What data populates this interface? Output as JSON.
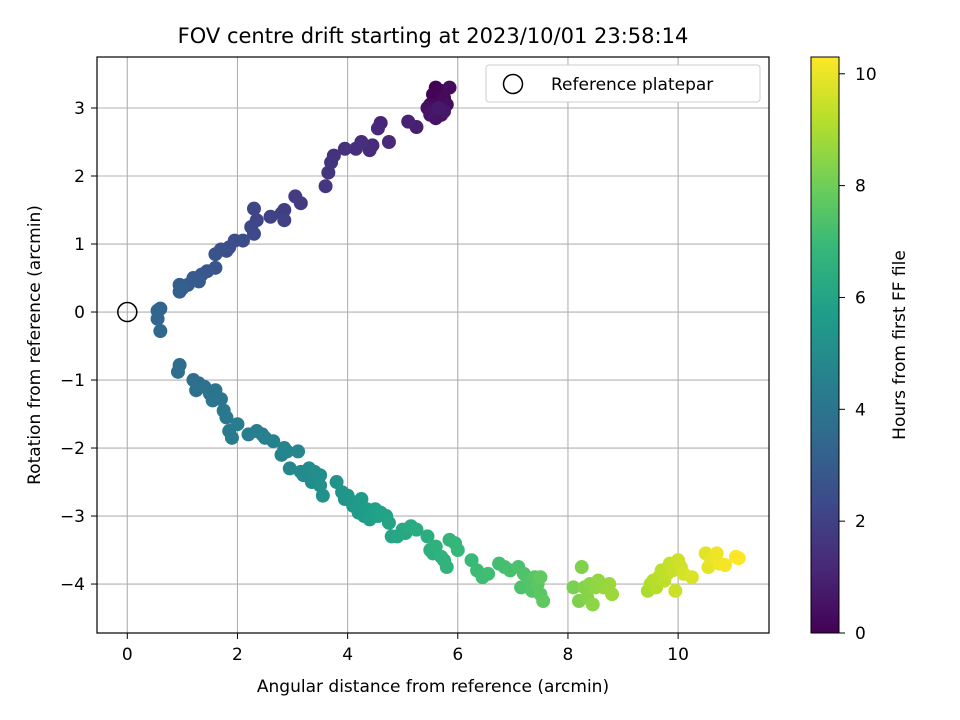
{
  "chart_data": {
    "type": "scatter",
    "title": "FOV centre drift starting at 2023/10/01 23:58:14",
    "xlabel": "Angular distance from reference (arcmin)",
    "ylabel": "Rotation from reference (arcmin)",
    "xlim": [
      -0.55,
      11.65
    ],
    "ylim": [
      -4.72,
      3.75
    ],
    "xticks": [
      0,
      2,
      4,
      6,
      8,
      10
    ],
    "yticks": [
      -4,
      -3,
      -2,
      -1,
      0,
      1,
      2,
      3
    ],
    "grid": true,
    "legend": {
      "placement": "top-right",
      "entries": [
        "Reference platepar"
      ]
    },
    "reference_point": {
      "x": 0,
      "y": 0,
      "label": "Reference platepar",
      "marker": "open-circle"
    },
    "colorbar": {
      "label": "Hours from first FF file",
      "min": 0,
      "max": 10.3,
      "ticks": [
        0,
        2,
        4,
        6,
        8,
        10
      ],
      "colormap": "viridis"
    },
    "colormap_stops": [
      "#440154",
      "#482878",
      "#3e4989",
      "#31688e",
      "#26828e",
      "#1f9e89",
      "#35b779",
      "#6ece58",
      "#b5de2b",
      "#fde725"
    ],
    "series": [
      {
        "points": [
          [
            5.6,
            3.3,
            0.0
          ],
          [
            5.55,
            3.2,
            0.05
          ],
          [
            5.7,
            3.25,
            0.1
          ],
          [
            5.65,
            3.1,
            0.15
          ],
          [
            5.5,
            3.05,
            0.2
          ],
          [
            5.75,
            3.15,
            0.25
          ],
          [
            5.85,
            3.3,
            0.3
          ],
          [
            5.8,
            3.05,
            0.35
          ],
          [
            5.55,
            2.95,
            0.4
          ],
          [
            5.45,
            3.0,
            0.45
          ],
          [
            5.7,
            2.9,
            0.5
          ],
          [
            5.6,
            2.85,
            0.55
          ],
          [
            5.5,
            2.9,
            0.6
          ],
          [
            5.75,
            2.95,
            0.65
          ],
          [
            5.65,
            3.0,
            0.7
          ],
          [
            5.25,
            2.72,
            0.9
          ],
          [
            5.1,
            2.8,
            1.0
          ],
          [
            4.6,
            2.78,
            1.1
          ],
          [
            4.55,
            2.7,
            1.15
          ],
          [
            4.75,
            2.5,
            1.2
          ],
          [
            4.45,
            2.45,
            1.25
          ],
          [
            4.4,
            2.38,
            1.3
          ],
          [
            4.25,
            2.5,
            1.35
          ],
          [
            4.15,
            2.4,
            1.4
          ],
          [
            3.95,
            2.4,
            1.45
          ],
          [
            3.75,
            2.3,
            1.5
          ],
          [
            3.7,
            2.2,
            1.55
          ],
          [
            3.65,
            2.05,
            1.6
          ],
          [
            3.6,
            1.85,
            1.65
          ],
          [
            3.15,
            1.6,
            1.8
          ],
          [
            3.05,
            1.7,
            1.85
          ],
          [
            2.85,
            1.5,
            1.9
          ],
          [
            2.8,
            1.45,
            1.95
          ],
          [
            2.85,
            1.35,
            2.0
          ],
          [
            2.6,
            1.4,
            2.05
          ],
          [
            2.35,
            1.35,
            2.15
          ],
          [
            2.3,
            1.52,
            2.2
          ],
          [
            2.25,
            1.25,
            2.25
          ],
          [
            2.3,
            1.15,
            2.3
          ],
          [
            2.1,
            1.05,
            2.4
          ],
          [
            1.95,
            1.05,
            2.45
          ],
          [
            1.85,
            0.95,
            2.5
          ],
          [
            1.8,
            0.9,
            2.55
          ],
          [
            1.7,
            0.92,
            2.6
          ],
          [
            1.6,
            0.85,
            2.65
          ],
          [
            1.6,
            0.65,
            2.75
          ],
          [
            1.45,
            0.6,
            2.8
          ],
          [
            1.35,
            0.55,
            2.85
          ],
          [
            1.3,
            0.45,
            2.9
          ],
          [
            1.2,
            0.5,
            2.95
          ],
          [
            1.1,
            0.4,
            3.0
          ],
          [
            0.95,
            0.4,
            3.05
          ],
          [
            1.0,
            0.35,
            3.1
          ],
          [
            0.95,
            0.3,
            3.15
          ],
          [
            0.6,
            0.05,
            3.3
          ],
          [
            0.55,
            0.02,
            3.35
          ],
          [
            0.55,
            -0.1,
            3.4
          ],
          [
            0.6,
            -0.28,
            3.45
          ],
          [
            0.95,
            -0.78,
            3.6
          ],
          [
            0.92,
            -0.88,
            3.65
          ],
          [
            1.2,
            -1.0,
            3.7
          ],
          [
            1.3,
            -1.05,
            3.75
          ],
          [
            1.25,
            -1.15,
            3.8
          ],
          [
            1.4,
            -1.1,
            3.85
          ],
          [
            1.5,
            -1.2,
            3.9
          ],
          [
            1.6,
            -1.15,
            3.95
          ],
          [
            1.55,
            -1.3,
            4.0
          ],
          [
            1.7,
            -1.28,
            4.05
          ],
          [
            1.75,
            -1.45,
            4.1
          ],
          [
            1.8,
            -1.55,
            4.15
          ],
          [
            1.85,
            -1.75,
            4.2
          ],
          [
            1.9,
            -1.85,
            4.25
          ],
          [
            2.0,
            -1.65,
            4.3
          ],
          [
            2.2,
            -1.8,
            4.35
          ],
          [
            2.35,
            -1.75,
            4.4
          ],
          [
            2.45,
            -1.8,
            4.45
          ],
          [
            2.5,
            -1.85,
            4.5
          ],
          [
            2.65,
            -1.9,
            4.55
          ],
          [
            2.8,
            -2.1,
            4.6
          ],
          [
            2.85,
            -2.0,
            4.65
          ],
          [
            2.9,
            -2.05,
            4.7
          ],
          [
            2.95,
            -2.3,
            4.75
          ],
          [
            3.1,
            -2.05,
            4.8
          ],
          [
            3.15,
            -2.35,
            4.85
          ],
          [
            3.2,
            -2.4,
            4.9
          ],
          [
            3.3,
            -2.3,
            4.95
          ],
          [
            3.35,
            -2.5,
            5.0
          ],
          [
            3.4,
            -2.35,
            5.05
          ],
          [
            3.5,
            -2.4,
            5.1
          ],
          [
            3.5,
            -2.55,
            5.15
          ],
          [
            3.55,
            -2.7,
            5.2
          ],
          [
            3.8,
            -2.5,
            5.25
          ],
          [
            3.9,
            -2.65,
            5.3
          ],
          [
            3.95,
            -2.75,
            5.35
          ],
          [
            4.0,
            -2.7,
            5.4
          ],
          [
            4.1,
            -2.85,
            5.45
          ],
          [
            4.15,
            -2.8,
            5.5
          ],
          [
            4.2,
            -2.95,
            5.55
          ],
          [
            4.25,
            -2.75,
            5.6
          ],
          [
            4.3,
            -3.0,
            5.65
          ],
          [
            4.35,
            -2.9,
            5.7
          ],
          [
            4.4,
            -3.05,
            5.75
          ],
          [
            4.5,
            -2.9,
            5.8
          ],
          [
            4.55,
            -3.0,
            5.85
          ],
          [
            4.6,
            -2.95,
            5.9
          ],
          [
            4.7,
            -3.0,
            5.95
          ],
          [
            4.75,
            -3.1,
            6.0
          ],
          [
            4.8,
            -3.3,
            6.05
          ],
          [
            4.9,
            -3.3,
            6.1
          ],
          [
            5.0,
            -3.2,
            6.15
          ],
          [
            5.05,
            -3.25,
            6.2
          ],
          [
            5.15,
            -3.15,
            6.25
          ],
          [
            5.25,
            -3.2,
            6.3
          ],
          [
            5.45,
            -3.3,
            6.4
          ],
          [
            5.5,
            -3.5,
            6.45
          ],
          [
            5.55,
            -3.55,
            6.5
          ],
          [
            5.6,
            -3.45,
            6.55
          ],
          [
            5.7,
            -3.6,
            6.6
          ],
          [
            5.75,
            -3.65,
            6.65
          ],
          [
            5.8,
            -3.75,
            6.7
          ],
          [
            5.85,
            -3.35,
            6.75
          ],
          [
            5.95,
            -3.4,
            6.8
          ],
          [
            6.0,
            -3.5,
            6.85
          ],
          [
            6.25,
            -3.65,
            6.95
          ],
          [
            6.35,
            -3.8,
            7.0
          ],
          [
            6.45,
            -3.9,
            7.05
          ],
          [
            6.55,
            -3.85,
            7.1
          ],
          [
            6.75,
            -3.7,
            7.15
          ],
          [
            6.85,
            -3.75,
            7.2
          ],
          [
            6.95,
            -3.8,
            7.25
          ],
          [
            7.1,
            -3.75,
            7.3
          ],
          [
            7.15,
            -4.05,
            7.35
          ],
          [
            7.2,
            -3.85,
            7.4
          ],
          [
            7.3,
            -3.95,
            7.45
          ],
          [
            7.35,
            -4.1,
            7.5
          ],
          [
            7.4,
            -3.9,
            7.55
          ],
          [
            7.45,
            -4.0,
            7.6
          ],
          [
            7.5,
            -4.15,
            7.65
          ],
          [
            7.55,
            -4.25,
            7.7
          ],
          [
            7.5,
            -3.9,
            7.75
          ],
          [
            8.1,
            -4.05,
            8.2
          ],
          [
            8.2,
            -4.25,
            8.25
          ],
          [
            8.25,
            -3.75,
            8.3
          ],
          [
            8.3,
            -4.05,
            8.35
          ],
          [
            8.35,
            -4.2,
            8.4
          ],
          [
            8.4,
            -4.0,
            8.45
          ],
          [
            8.45,
            -4.3,
            8.5
          ],
          [
            8.5,
            -4.05,
            8.55
          ],
          [
            8.55,
            -3.95,
            8.6
          ],
          [
            8.65,
            -4.05,
            8.65
          ],
          [
            8.75,
            -4.0,
            8.7
          ],
          [
            8.8,
            -4.15,
            8.75
          ],
          [
            9.45,
            -4.1,
            9.0
          ],
          [
            9.5,
            -4.0,
            9.05
          ],
          [
            9.55,
            -3.95,
            9.1
          ],
          [
            9.6,
            -4.05,
            9.15
          ],
          [
            9.65,
            -3.9,
            9.2
          ],
          [
            9.7,
            -3.8,
            9.25
          ],
          [
            9.75,
            -3.95,
            9.3
          ],
          [
            9.8,
            -3.85,
            9.35
          ],
          [
            9.85,
            -3.7,
            9.4
          ],
          [
            9.9,
            -3.8,
            9.45
          ],
          [
            9.95,
            -4.1,
            9.5
          ],
          [
            10.0,
            -3.65,
            9.55
          ],
          [
            10.05,
            -3.75,
            9.6
          ],
          [
            10.1,
            -3.85,
            9.65
          ],
          [
            10.25,
            -3.9,
            9.75
          ],
          [
            10.5,
            -3.55,
            9.85
          ],
          [
            10.55,
            -3.75,
            9.9
          ],
          [
            10.6,
            -3.65,
            9.95
          ],
          [
            10.65,
            -3.6,
            10.0
          ],
          [
            10.7,
            -3.55,
            10.05
          ],
          [
            10.75,
            -3.7,
            10.1
          ],
          [
            10.85,
            -3.72,
            10.15
          ],
          [
            11.05,
            -3.6,
            10.25
          ],
          [
            11.1,
            -3.62,
            10.3
          ]
        ]
      }
    ]
  }
}
